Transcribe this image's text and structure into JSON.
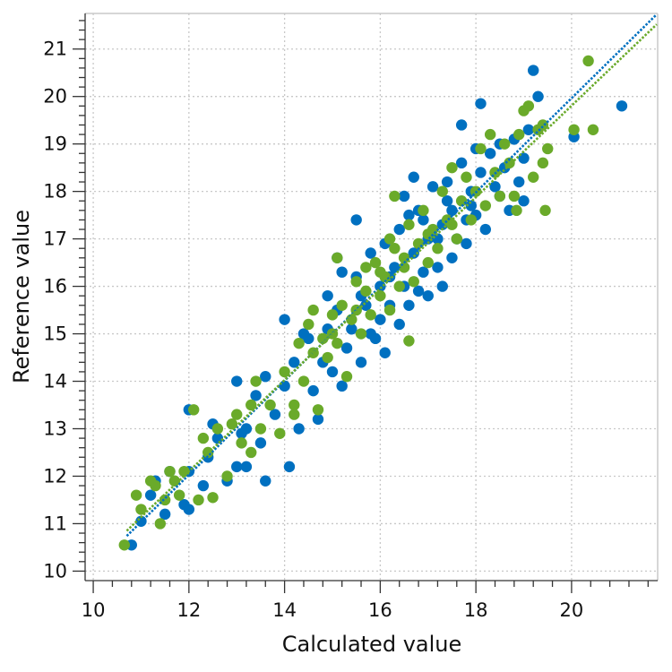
{
  "chart_data": {
    "type": "scatter",
    "title": "",
    "xlabel": "Calculated value",
    "ylabel": "Reference value",
    "xlim": [
      9.83,
      21.8
    ],
    "ylim": [
      9.8,
      21.75
    ],
    "x_ticks": [
      "10",
      "12",
      "14",
      "16",
      "18",
      "20"
    ],
    "y_ticks": [
      "10",
      "11",
      "12",
      "13",
      "14",
      "15",
      "16",
      "17",
      "18",
      "19",
      "20",
      "21"
    ],
    "grid": true,
    "legend": "none",
    "series": [
      {
        "color": "#0070c0",
        "regression_line": {
          "from": [
            10.7,
            10.74
          ],
          "to": [
            21.78,
            21.73
          ],
          "style": "dotted"
        },
        "points": [
          [
            10.8,
            10.55
          ],
          [
            11.0,
            11.05
          ],
          [
            11.3,
            11.9
          ],
          [
            11.5,
            11.2
          ],
          [
            11.6,
            12.1
          ],
          [
            11.9,
            11.4
          ],
          [
            12.0,
            12.1
          ],
          [
            12.0,
            11.3
          ],
          [
            12.0,
            13.4
          ],
          [
            12.3,
            11.8
          ],
          [
            12.4,
            12.4
          ],
          [
            12.6,
            12.8
          ],
          [
            12.8,
            11.9
          ],
          [
            13.0,
            12.2
          ],
          [
            13.1,
            12.9
          ],
          [
            13.2,
            12.2
          ],
          [
            13.0,
            14.0
          ],
          [
            13.2,
            13.0
          ],
          [
            13.4,
            13.7
          ],
          [
            13.6,
            11.9
          ],
          [
            13.6,
            14.1
          ],
          [
            13.8,
            13.3
          ],
          [
            14.0,
            13.9
          ],
          [
            14.1,
            12.2
          ],
          [
            14.2,
            14.4
          ],
          [
            14.0,
            15.3
          ],
          [
            14.3,
            13.0
          ],
          [
            14.5,
            14.9
          ],
          [
            14.6,
            13.8
          ],
          [
            14.7,
            13.2
          ],
          [
            14.8,
            14.4
          ],
          [
            14.9,
            15.8
          ],
          [
            14.9,
            15.1
          ],
          [
            15.0,
            14.2
          ],
          [
            15.1,
            15.5
          ],
          [
            15.2,
            16.3
          ],
          [
            15.2,
            13.9
          ],
          [
            15.3,
            14.7
          ],
          [
            15.4,
            15.1
          ],
          [
            15.5,
            17.4
          ],
          [
            15.5,
            16.2
          ],
          [
            15.6,
            14.4
          ],
          [
            15.7,
            15.6
          ],
          [
            15.8,
            15.0
          ],
          [
            15.8,
            16.7
          ],
          [
            15.9,
            14.9
          ],
          [
            16.0,
            16.0
          ],
          [
            16.0,
            15.3
          ],
          [
            16.1,
            14.6
          ],
          [
            16.1,
            16.9
          ],
          [
            16.2,
            15.6
          ],
          [
            16.3,
            16.4
          ],
          [
            16.4,
            15.2
          ],
          [
            16.4,
            17.2
          ],
          [
            16.5,
            16.0
          ],
          [
            16.5,
            17.9
          ],
          [
            16.6,
            15.6
          ],
          [
            16.7,
            16.7
          ],
          [
            16.8,
            15.9
          ],
          [
            16.8,
            17.6
          ],
          [
            16.9,
            16.3
          ],
          [
            17.0,
            17.0
          ],
          [
            17.0,
            15.8
          ],
          [
            17.1,
            18.1
          ],
          [
            17.2,
            16.4
          ],
          [
            17.3,
            17.3
          ],
          [
            17.3,
            16.0
          ],
          [
            17.4,
            18.2
          ],
          [
            17.5,
            17.6
          ],
          [
            17.5,
            16.6
          ],
          [
            17.6,
            17.0
          ],
          [
            17.7,
            18.6
          ],
          [
            17.7,
            19.4
          ],
          [
            17.8,
            17.4
          ],
          [
            17.8,
            16.9
          ],
          [
            17.9,
            18.0
          ],
          [
            18.0,
            18.9
          ],
          [
            18.0,
            17.5
          ],
          [
            18.1,
            19.85
          ],
          [
            18.1,
            18.4
          ],
          [
            18.2,
            17.2
          ],
          [
            18.3,
            18.8
          ],
          [
            18.4,
            18.1
          ],
          [
            18.5,
            19.0
          ],
          [
            18.5,
            17.9
          ],
          [
            18.6,
            18.5
          ],
          [
            18.7,
            17.6
          ],
          [
            18.8,
            19.1
          ],
          [
            18.9,
            18.2
          ],
          [
            19.0,
            17.8
          ],
          [
            19.1,
            19.3
          ],
          [
            19.2,
            20.55
          ],
          [
            19.3,
            20.0
          ],
          [
            19.0,
            18.7
          ],
          [
            20.05,
            19.15
          ],
          [
            21.05,
            19.8
          ],
          [
            16.6,
            17.5
          ],
          [
            15.1,
            16.6
          ],
          [
            14.4,
            15.0
          ],
          [
            15.6,
            15.8
          ],
          [
            16.9,
            17.4
          ],
          [
            17.4,
            17.8
          ],
          [
            16.2,
            16.2
          ],
          [
            17.9,
            17.7
          ],
          [
            16.7,
            18.3
          ],
          [
            17.2,
            17.0
          ],
          [
            13.5,
            12.7
          ],
          [
            12.5,
            13.1
          ],
          [
            11.2,
            11.6
          ]
        ]
      },
      {
        "color": "#6aaa2a",
        "regression_line": {
          "from": [
            10.7,
            10.85
          ],
          "to": [
            21.78,
            21.52
          ],
          "style": "dotted"
        },
        "points": [
          [
            10.65,
            10.55
          ],
          [
            10.9,
            11.6
          ],
          [
            11.0,
            11.3
          ],
          [
            11.2,
            11.9
          ],
          [
            11.3,
            11.8
          ],
          [
            11.4,
            11.0
          ],
          [
            11.5,
            11.5
          ],
          [
            11.6,
            12.1
          ],
          [
            11.7,
            11.9
          ],
          [
            11.8,
            11.6
          ],
          [
            12.1,
            13.4
          ],
          [
            12.2,
            11.5
          ],
          [
            12.3,
            12.8
          ],
          [
            12.4,
            12.5
          ],
          [
            12.5,
            11.55
          ],
          [
            12.6,
            13.0
          ],
          [
            12.8,
            12.0
          ],
          [
            13.0,
            13.3
          ],
          [
            13.1,
            12.7
          ],
          [
            13.3,
            13.5
          ],
          [
            13.4,
            14.0
          ],
          [
            13.5,
            13.0
          ],
          [
            13.7,
            13.5
          ],
          [
            13.9,
            12.9
          ],
          [
            14.0,
            14.2
          ],
          [
            14.2,
            13.5
          ],
          [
            14.3,
            14.8
          ],
          [
            14.4,
            14.0
          ],
          [
            14.5,
            15.2
          ],
          [
            14.6,
            14.6
          ],
          [
            14.7,
            13.4
          ],
          [
            14.8,
            14.9
          ],
          [
            14.9,
            14.5
          ],
          [
            15.0,
            15.4
          ],
          [
            15.1,
            16.6
          ],
          [
            15.1,
            14.8
          ],
          [
            15.2,
            15.6
          ],
          [
            15.3,
            14.1
          ],
          [
            15.4,
            15.3
          ],
          [
            15.5,
            16.1
          ],
          [
            15.6,
            15.0
          ],
          [
            15.7,
            15.9
          ],
          [
            15.8,
            15.4
          ],
          [
            15.9,
            16.5
          ],
          [
            16.0,
            15.8
          ],
          [
            16.1,
            16.2
          ],
          [
            16.2,
            15.5
          ],
          [
            16.3,
            17.9
          ],
          [
            16.3,
            16.8
          ],
          [
            16.4,
            16.0
          ],
          [
            16.5,
            16.6
          ],
          [
            16.6,
            14.85
          ],
          [
            16.6,
            17.3
          ],
          [
            16.7,
            16.1
          ],
          [
            16.8,
            16.9
          ],
          [
            16.9,
            17.6
          ],
          [
            17.0,
            16.5
          ],
          [
            17.1,
            17.2
          ],
          [
            17.2,
            16.8
          ],
          [
            17.3,
            18.0
          ],
          [
            17.4,
            17.4
          ],
          [
            17.5,
            18.5
          ],
          [
            17.6,
            17.0
          ],
          [
            17.7,
            17.8
          ],
          [
            17.8,
            18.3
          ],
          [
            17.9,
            17.4
          ],
          [
            18.0,
            18.0
          ],
          [
            18.1,
            18.9
          ],
          [
            18.2,
            17.7
          ],
          [
            18.3,
            19.2
          ],
          [
            18.4,
            18.4
          ],
          [
            18.5,
            17.9
          ],
          [
            18.6,
            19.0
          ],
          [
            18.7,
            18.6
          ],
          [
            18.8,
            17.9
          ],
          [
            18.9,
            19.2
          ],
          [
            19.0,
            19.7
          ],
          [
            19.1,
            19.8
          ],
          [
            19.2,
            18.3
          ],
          [
            19.3,
            19.3
          ],
          [
            19.4,
            18.6
          ],
          [
            19.45,
            17.6
          ],
          [
            19.5,
            18.9
          ],
          [
            19.4,
            19.4
          ],
          [
            18.85,
            17.6
          ],
          [
            20.05,
            19.3
          ],
          [
            20.45,
            19.3
          ],
          [
            20.35,
            20.75
          ],
          [
            15.0,
            15.0
          ],
          [
            15.5,
            15.5
          ],
          [
            16.0,
            16.3
          ],
          [
            16.5,
            16.4
          ],
          [
            17.0,
            17.1
          ],
          [
            17.5,
            17.3
          ],
          [
            16.2,
            17.0
          ],
          [
            15.7,
            16.4
          ],
          [
            14.6,
            15.5
          ],
          [
            14.2,
            13.3
          ],
          [
            13.3,
            12.5
          ],
          [
            12.9,
            13.1
          ],
          [
            11.9,
            12.1
          ]
        ]
      }
    ]
  }
}
